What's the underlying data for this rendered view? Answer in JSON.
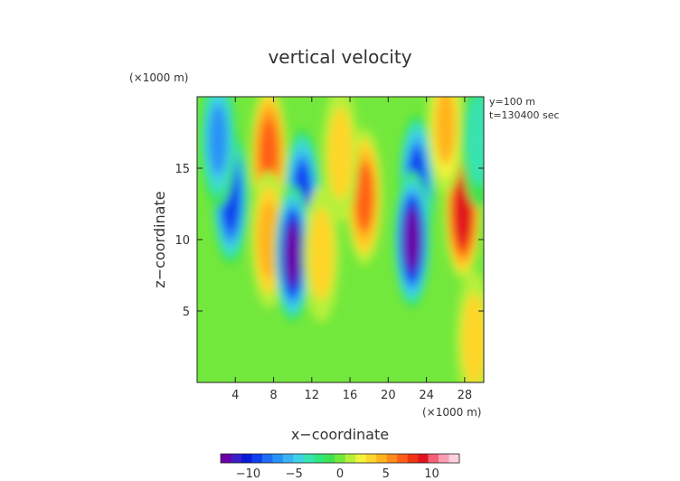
{
  "chart_data": {
    "type": "heatmap",
    "title": "vertical velocity",
    "xlabel": "x−coordinate",
    "ylabel": "z−coordinate",
    "x_unit": "(×1000 m)",
    "y_unit": "(×1000 m)",
    "annotations": [
      "y=100 m",
      "t=130400 sec"
    ],
    "xlim": [
      0,
      30
    ],
    "ylim": [
      0,
      20
    ],
    "x_ticks": [
      4,
      8,
      12,
      16,
      20,
      24,
      28
    ],
    "x_tick_labels": [
      "4",
      "8",
      "12",
      "16",
      "20",
      "24",
      "28"
    ],
    "y_ticks": [
      5,
      10,
      15
    ],
    "y_tick_labels": [
      "5",
      "10",
      "15"
    ],
    "colorbar": {
      "range": [
        -13,
        13
      ],
      "ticks": [
        -10,
        -5,
        0,
        5,
        10
      ],
      "tick_labels": [
        "−10",
        "−5",
        "0",
        "5",
        "10"
      ],
      "colors": [
        "#6b00a8",
        "#3d1fc8",
        "#0a1ad8",
        "#1040ee",
        "#1f6cf5",
        "#2a92f6",
        "#3ab3f3",
        "#3fd1e6",
        "#38e3b2",
        "#2ee77e",
        "#40e24e",
        "#73e83c",
        "#b6f03a",
        "#f3f23a",
        "#ffd62c",
        "#ffb31f",
        "#ff8c1a",
        "#ff5e17",
        "#ef3414",
        "#e0141c",
        "#f55e77",
        "#fb9eb4",
        "#fdd0dc"
      ]
    },
    "features": [
      {
        "x": 3.5,
        "z": 13.0,
        "w": -9.5
      },
      {
        "x": 2.2,
        "z": 17.0,
        "w": -6.5
      },
      {
        "x": 7.5,
        "z": 16.0,
        "w": 7.0
      },
      {
        "x": 7.5,
        "z": 10.0,
        "w": 4.5
      },
      {
        "x": 11.0,
        "z": 13.0,
        "w": -9.0
      },
      {
        "x": 10.0,
        "z": 9.0,
        "w": -12.5
      },
      {
        "x": 13.0,
        "z": 9.0,
        "w": 3.0
      },
      {
        "x": 17.5,
        "z": 13.0,
        "w": 6.5
      },
      {
        "x": 15.0,
        "z": 16.0,
        "w": 3.5
      },
      {
        "x": 23.0,
        "z": 14.0,
        "w": -9.0
      },
      {
        "x": 22.5,
        "z": 10.0,
        "w": -12.5
      },
      {
        "x": 27.8,
        "z": 12.0,
        "w": 9.5
      },
      {
        "x": 26.0,
        "z": 18.0,
        "w": 4.0
      },
      {
        "x": 29.5,
        "z": 17.0,
        "w": -3.5
      },
      {
        "x": 29.0,
        "z": 3.0,
        "w": 3.0
      }
    ]
  }
}
